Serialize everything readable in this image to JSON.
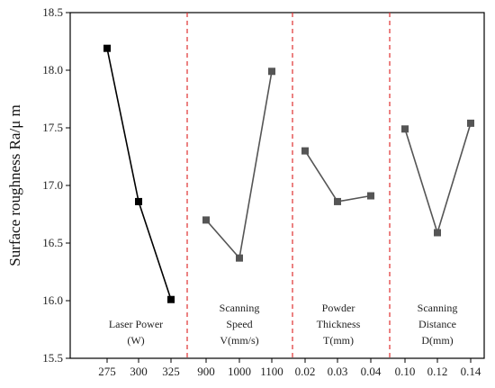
{
  "chart_data": {
    "type": "line",
    "ylabel": "Surface roughness Ra/μ m",
    "ylim": [
      15.5,
      18.5
    ],
    "yticks": [
      "15.5",
      "16.0",
      "16.5",
      "17.0",
      "17.5",
      "18.0",
      "18.5"
    ],
    "grid": false,
    "groups": [
      {
        "label_lines": [
          "Laser Power",
          "(W)"
        ],
        "x": [
          "275",
          "300",
          "325"
        ],
        "values": [
          18.19,
          16.86,
          16.01
        ],
        "color": "#000000"
      },
      {
        "label_lines": [
          "Scanning",
          "Speed",
          "V(mm/s)"
        ],
        "x": [
          "900",
          "1000",
          "1100"
        ],
        "values": [
          16.7,
          16.37,
          17.99
        ],
        "color": "#555555"
      },
      {
        "label_lines": [
          "Powder",
          "Thickness",
          "T(mm)"
        ],
        "x": [
          "0.02",
          "0.03",
          "0.04"
        ],
        "values": [
          17.3,
          16.86,
          16.91
        ],
        "color": "#555555"
      },
      {
        "label_lines": [
          "Scanning",
          "Distance",
          "D(mm)"
        ],
        "x": [
          "0.10",
          "0.12",
          "0.14"
        ],
        "values": [
          17.49,
          16.59,
          17.54
        ],
        "color": "#555555"
      }
    ],
    "separator_color": "#e03030"
  }
}
